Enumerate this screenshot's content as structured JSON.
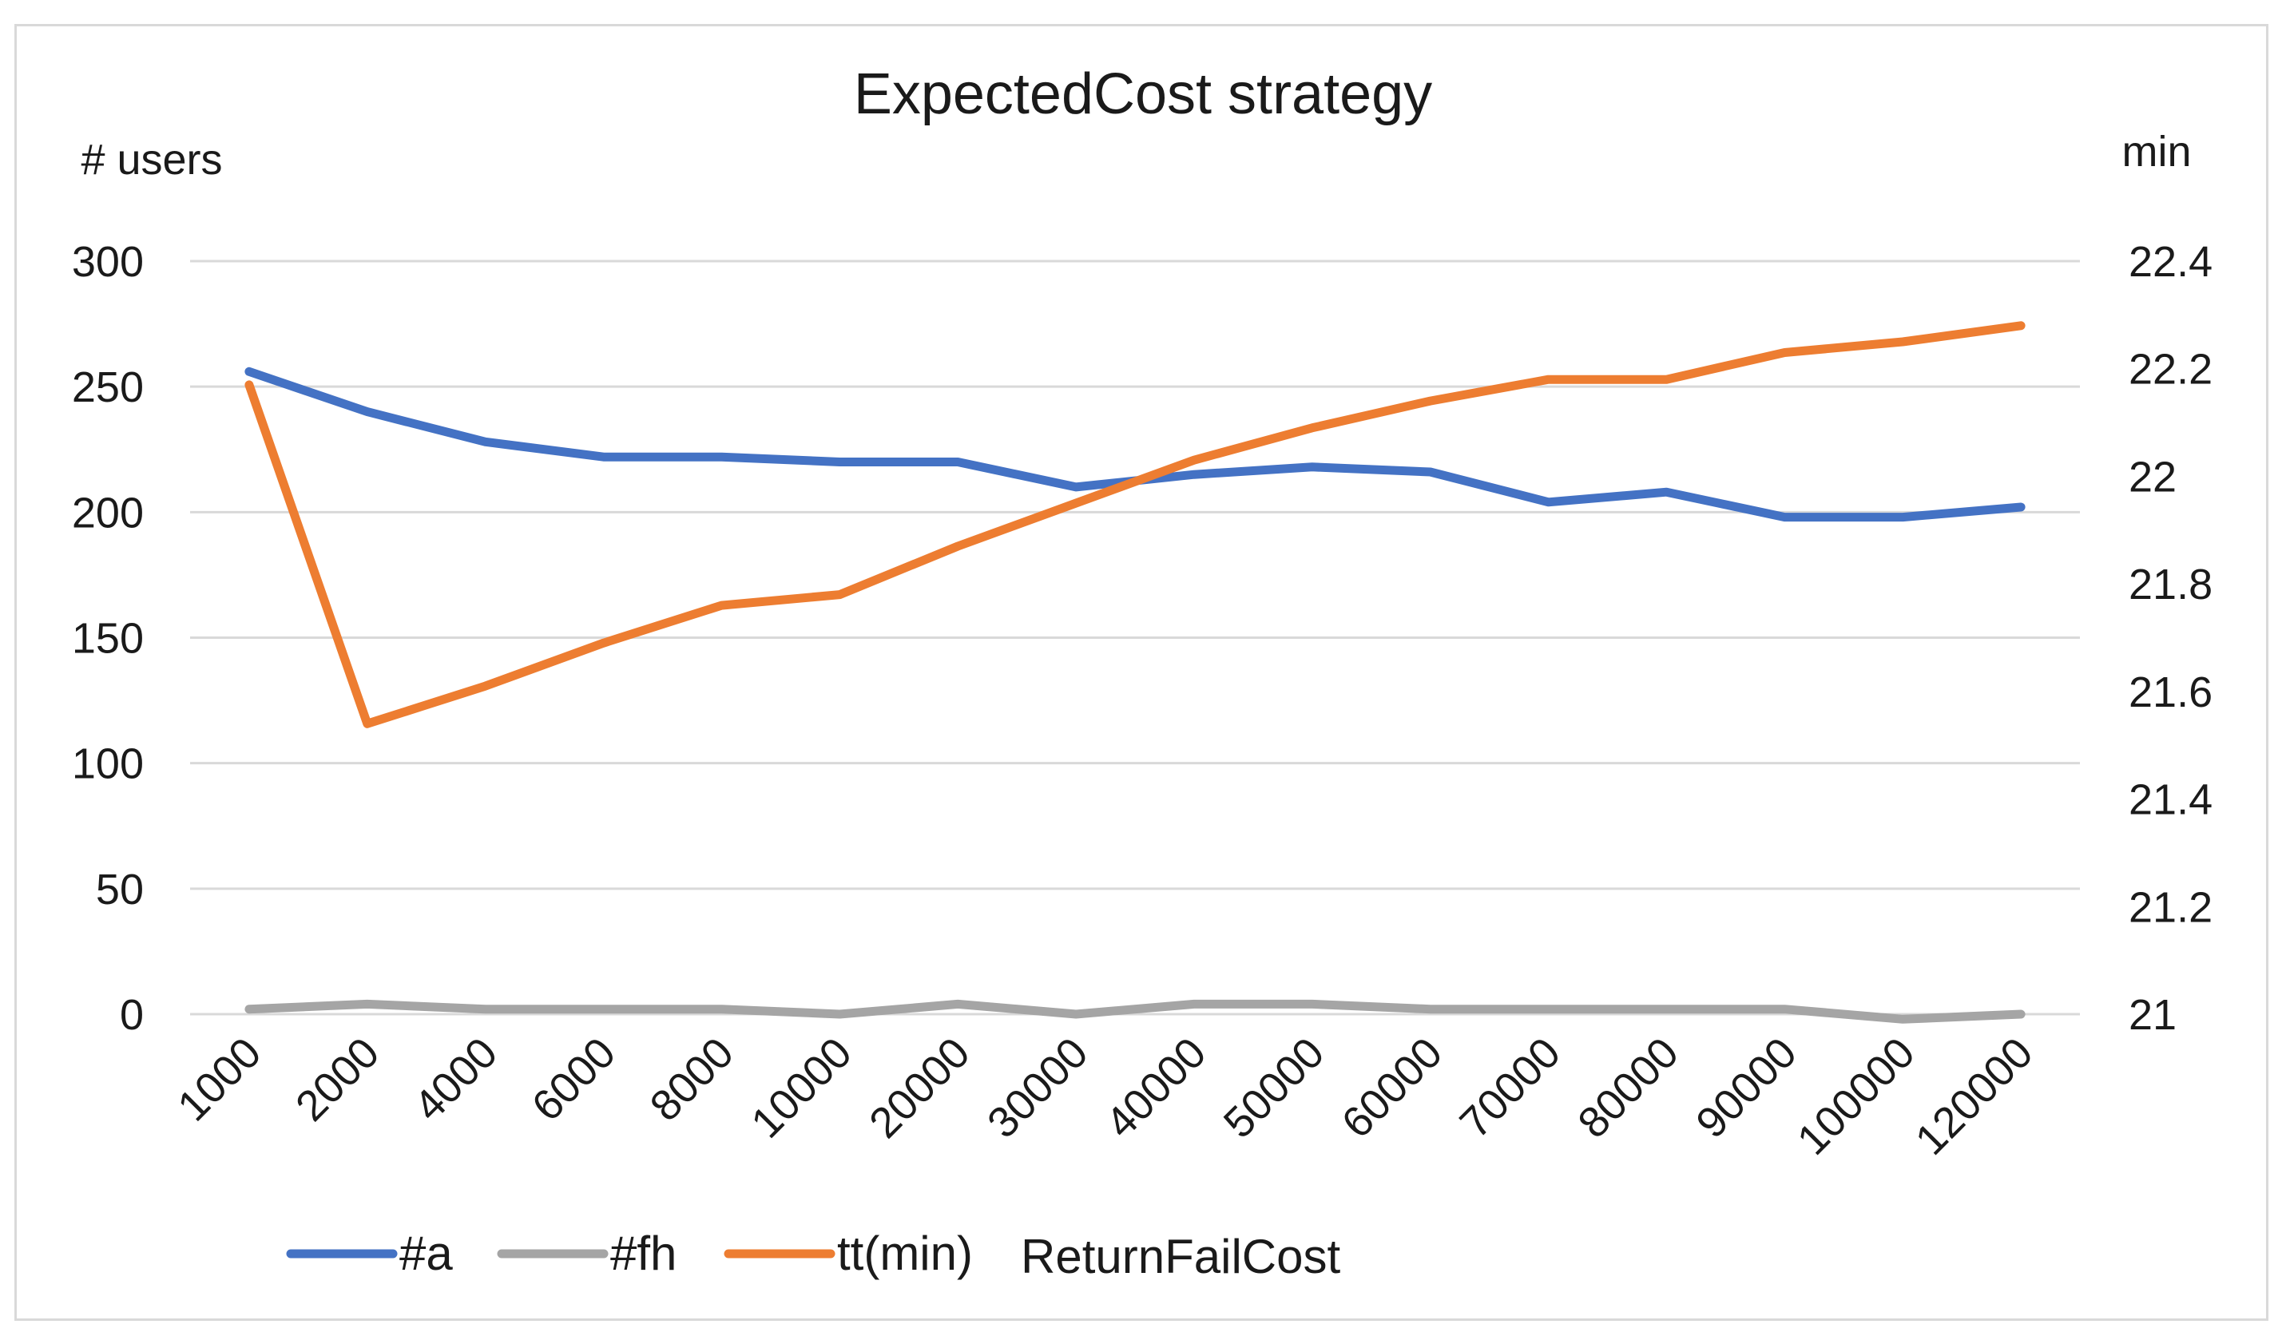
{
  "chart_data": {
    "type": "line",
    "title": "ExpectedCost strategy",
    "y_left_label": "# users",
    "y_right_label": "min",
    "categories": [
      "1000",
      "2000",
      "4000",
      "6000",
      "8000",
      "10000",
      "20000",
      "30000",
      "40000",
      "50000",
      "60000",
      "70000",
      "80000",
      "90000",
      "100000",
      "120000"
    ],
    "y_left": {
      "min": 0,
      "max": 300,
      "ticks": [
        "0",
        "50",
        "100",
        "150",
        "200",
        "250",
        "300"
      ]
    },
    "y_right": {
      "min": 21,
      "max": 22.4,
      "ticks": [
        "21",
        "21.2",
        "21.4",
        "21.6",
        "21.8",
        "22",
        "22.2",
        "22.4"
      ]
    },
    "grid": true,
    "legend_position": "bottom-left",
    "legend_note": "ReturnFailCost",
    "series": [
      {
        "name": "#a",
        "axis": "left",
        "color": "#4472C4",
        "values": [
          256,
          240,
          228,
          222,
          222,
          220,
          220,
          210,
          215,
          218,
          216,
          204,
          208,
          198,
          198,
          202
        ]
      },
      {
        "name": "#fh",
        "axis": "left",
        "color": "#A5A5A5",
        "values": [
          2,
          4,
          2,
          2,
          2,
          0,
          4,
          0,
          4,
          4,
          2,
          2,
          2,
          2,
          -2,
          0
        ]
      },
      {
        "name": "tt(min)",
        "axis": "right",
        "color": "#ED7D31",
        "values": [
          22.17,
          21.54,
          21.61,
          21.69,
          21.76,
          21.78,
          21.87,
          21.95,
          22.03,
          22.09,
          22.14,
          22.18,
          22.18,
          22.23,
          22.25,
          22.28
        ]
      }
    ]
  }
}
